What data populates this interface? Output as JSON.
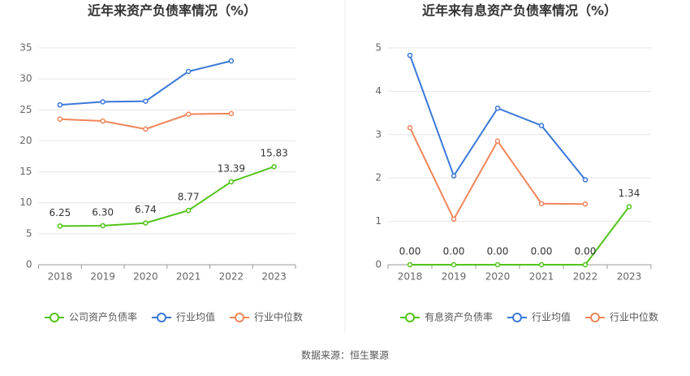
{
  "chart_data": [
    {
      "type": "line",
      "title": "近年来资产负债率情况（%）",
      "categories": [
        "2018",
        "2019",
        "2020",
        "2021",
        "2022",
        "2023"
      ],
      "series": [
        {
          "name": "公司资产负债率",
          "color": "#52c41a",
          "values": [
            6.25,
            6.3,
            6.74,
            8.77,
            13.39,
            15.83
          ],
          "value_labels": [
            "6.25",
            "6.30",
            "6.74",
            "8.77",
            "13.39",
            "15.83"
          ]
        },
        {
          "name": "行业均值",
          "color": "#3a78d8",
          "values": [
            25.8,
            26.3,
            26.4,
            31.2,
            32.9,
            null
          ]
        },
        {
          "name": "行业中位数",
          "color": "#f0855a",
          "values": [
            23.5,
            23.2,
            21.9,
            24.3,
            24.4,
            null
          ]
        }
      ],
      "ylim": [
        0,
        35
      ],
      "yticks": [
        0,
        5,
        10,
        15,
        20,
        25,
        30,
        35
      ],
      "grid": true
    },
    {
      "type": "line",
      "title": "近年来有息资产负债率情况（%）",
      "categories": [
        "2018",
        "2019",
        "2020",
        "2021",
        "2022",
        "2023"
      ],
      "series": [
        {
          "name": "有息资产负债率",
          "color": "#52c41a",
          "values": [
            0,
            0,
            0,
            0,
            0,
            1.34
          ],
          "value_labels": [
            "0.00",
            "0.00",
            "0.00",
            "0.00",
            "0.00",
            "1.34"
          ]
        },
        {
          "name": "行业均值",
          "color": "#3a78d8",
          "values": [
            4.83,
            2.05,
            3.61,
            3.21,
            1.96,
            null
          ]
        },
        {
          "name": "行业中位数",
          "color": "#f0855a",
          "values": [
            3.16,
            1.05,
            2.85,
            1.41,
            1.4,
            null
          ]
        }
      ],
      "ylim": [
        0,
        5
      ],
      "yticks": [
        0,
        1,
        2,
        3,
        4,
        5
      ],
      "grid": true
    }
  ],
  "source": "数据来源：恒生聚源"
}
